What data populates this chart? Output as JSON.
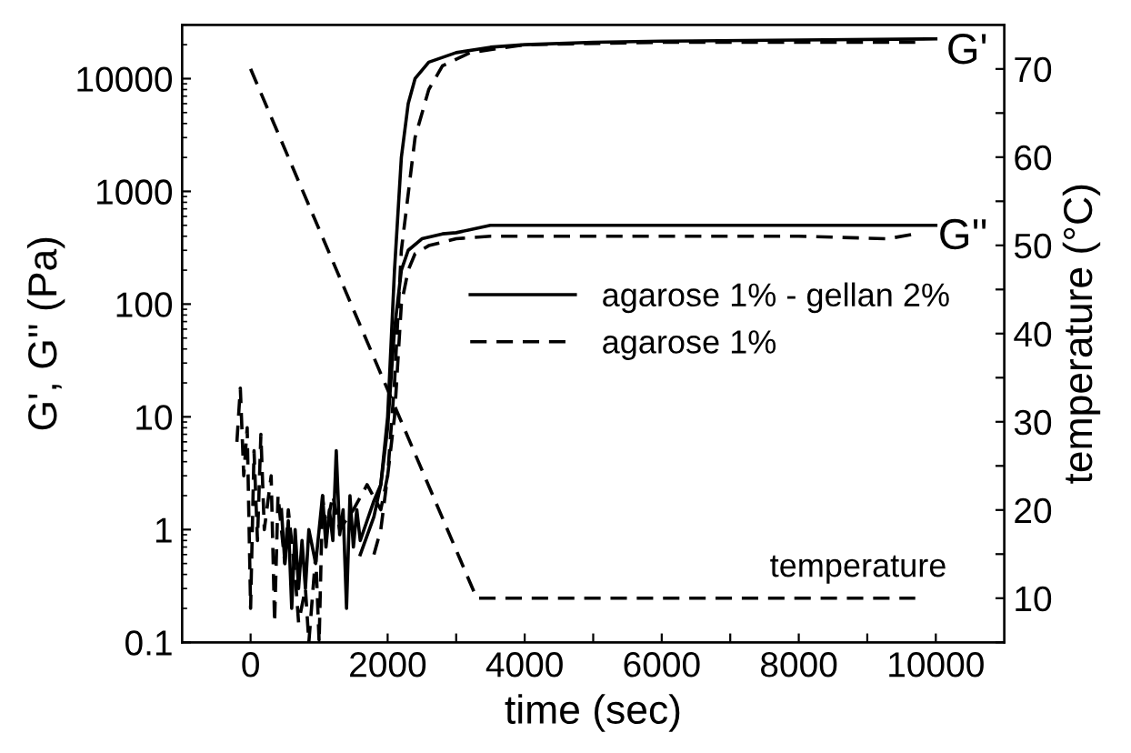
{
  "chart_data": {
    "type": "line",
    "xlabel": "time (sec)",
    "ylabel": "G', G'' (Pa)",
    "y2label": "temperature (°C)",
    "log": true,
    "xlim": [
      -1000,
      11000
    ],
    "xticks": [
      0,
      {
        "value": 1000,
        "label": null
      },
      2000,
      {
        "value": 3000,
        "label": null
      },
      4000,
      {
        "value": 5000,
        "label": null
      },
      6000,
      {
        "value": 7000,
        "label": null
      },
      8000,
      {
        "value": 9000,
        "label": null
      },
      10000
    ],
    "ylim": [
      0.1,
      30000
    ],
    "yticks": [
      0.1,
      1,
      10,
      100,
      1000,
      10000
    ],
    "y2lim": [
      5,
      75
    ],
    "y2ticks": [
      {
        "value": 5,
        "label": null
      },
      10,
      {
        "value": 15,
        "label": null
      },
      20,
      {
        "value": 25,
        "label": null
      },
      30,
      {
        "value": 35,
        "label": null
      },
      40,
      {
        "value": 45,
        "label": null
      },
      50,
      {
        "value": 55,
        "label": null
      },
      60,
      {
        "value": 65,
        "label": null
      },
      70
    ],
    "legend": "right",
    "grid": false,
    "series": [
      {
        "name": "agarose 1% - gellan 2%",
        "color": "#000000",
        "line_style": "solid",
        "x": [
          450,
          500,
          550,
          600,
          650,
          700,
          750,
          800,
          850,
          950,
          1050,
          1100,
          1150,
          1200,
          1250,
          1300,
          1350,
          1400,
          1450,
          1500,
          1550,
          1600,
          1700,
          1800,
          1900,
          2000,
          2100,
          2200,
          2300,
          2400,
          2600,
          3000,
          3500,
          4000,
          5000,
          6000,
          8000,
          10000
        ],
        "values": [
          1.5,
          0.5,
          1.2,
          0.2,
          1.0,
          0.3,
          0.8,
          0.3,
          1.0,
          0.5,
          2.0,
          0.7,
          1.5,
          0.8,
          5,
          0.9,
          1.5,
          0.2,
          2.0,
          0.7,
          1.5,
          0.8,
          1.2,
          1.8,
          2.5,
          10,
          200,
          2000,
          6000,
          10000,
          14000,
          17000,
          19000,
          20000,
          21000,
          21500,
          22000,
          22500
        ]
      },
      {
        "color": "#000000",
        "line_style": "solid",
        "x": [
          1600,
          1800,
          1900,
          2000,
          2100,
          2200,
          2300,
          2500,
          2800,
          3000,
          3500,
          4000,
          6000,
          8000,
          10000
        ],
        "values": [
          0.6,
          1.3,
          2.5,
          8,
          60,
          200,
          300,
          380,
          420,
          430,
          500,
          500,
          500,
          500,
          500
        ]
      },
      {
        "name": "agarose 1%",
        "color": "#000000",
        "line_style": "dashed",
        "x": [
          -200,
          -150,
          -100,
          -50,
          0,
          50,
          100,
          150,
          200,
          300,
          350,
          400,
          500,
          550,
          650,
          700,
          800,
          850,
          950,
          1000,
          1050,
          1100,
          1200,
          1300,
          1500,
          1700,
          1900,
          2000,
          2100,
          2200,
          2400,
          2600,
          2800,
          3200,
          4000,
          6000,
          8000,
          9700
        ],
        "values": [
          6,
          18,
          3,
          8,
          0.2,
          5,
          0.8,
          7,
          1,
          3,
          0.15,
          2,
          0.5,
          1.5,
          0.4,
          0.15,
          0.3,
          0.1,
          0.6,
          0.1,
          2,
          1,
          2,
          1,
          1.5,
          2.5,
          1.5,
          3,
          20,
          300,
          3000,
          8000,
          13000,
          17000,
          20000,
          21000,
          21000,
          21000
        ]
      },
      {
        "color": "#000000",
        "line_style": "dashed",
        "x": [
          1800,
          1900,
          2000,
          2100,
          2200,
          2300,
          2400,
          2600,
          3000,
          3500,
          5000,
          8000,
          9300,
          9700
        ],
        "values": [
          0.6,
          1,
          3,
          10,
          100,
          200,
          280,
          330,
          380,
          400,
          400,
          400,
          380,
          420
        ]
      },
      {
        "color": "#000000",
        "line_style": "dashed",
        "axis": "y2",
        "x": [
          0,
          3300,
          9700
        ],
        "values": [
          70,
          10,
          10
        ]
      }
    ],
    "annotations": [
      "G'",
      "G''",
      "temperature"
    ]
  }
}
